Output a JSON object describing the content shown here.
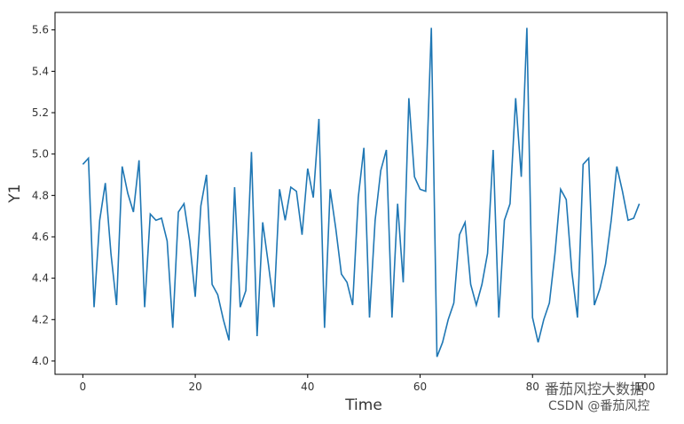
{
  "chart_data": {
    "type": "line",
    "xlabel": "Time",
    "ylabel": "Y1",
    "x": [
      0,
      1,
      2,
      3,
      4,
      5,
      6,
      7,
      8,
      9,
      10,
      11,
      12,
      13,
      14,
      15,
      16,
      17,
      18,
      19,
      20,
      21,
      22,
      23,
      24,
      25,
      26,
      27,
      28,
      29,
      30,
      31,
      32,
      33,
      34,
      35,
      36,
      37,
      38,
      39,
      40,
      41,
      42,
      43,
      44,
      45,
      46,
      47,
      48,
      49,
      50,
      51,
      52,
      53,
      54,
      55,
      56,
      57,
      58,
      59,
      60,
      61,
      62,
      63,
      64,
      65,
      66,
      67,
      68,
      69,
      70,
      71,
      72,
      73,
      74,
      75,
      76,
      77,
      78,
      79,
      80,
      81,
      82,
      83,
      84,
      85,
      86,
      87,
      88,
      89,
      90,
      91,
      92,
      93,
      94,
      95,
      96,
      97,
      98,
      99
    ],
    "series": [
      {
        "name": "Y1",
        "color": "#1f77b4",
        "values": [
          4.95,
          4.98,
          4.26,
          4.68,
          4.86,
          4.52,
          4.27,
          4.94,
          4.81,
          4.72,
          4.97,
          4.26,
          4.71,
          4.68,
          4.69,
          4.58,
          4.16,
          4.72,
          4.76,
          4.58,
          4.31,
          4.75,
          4.9,
          4.37,
          4.32,
          4.2,
          4.1,
          4.84,
          4.26,
          4.34,
          5.01,
          4.12,
          4.67,
          4.47,
          4.26,
          4.83,
          4.68,
          4.84,
          4.82,
          4.61,
          4.93,
          4.79,
          5.17,
          4.16,
          4.83,
          4.64,
          4.42,
          4.38,
          4.27,
          4.79,
          5.03,
          4.21,
          4.68,
          4.92,
          5.02,
          4.21,
          4.76,
          4.38,
          5.27,
          4.89,
          4.83,
          4.82,
          5.61,
          4.02,
          4.09,
          4.2,
          4.28,
          4.61,
          4.67,
          4.37,
          4.27,
          4.37,
          4.52,
          5.02,
          4.21,
          4.68,
          4.76,
          5.27,
          4.89,
          5.61,
          4.21,
          4.09,
          4.2,
          4.28,
          4.52,
          4.83,
          4.78,
          4.43,
          4.21,
          4.95,
          4.98,
          4.27,
          4.35,
          4.47,
          4.68,
          4.94,
          4.82,
          4.68,
          4.69,
          4.76
        ]
      }
    ],
    "xlim": [
      -4.95,
      103.95
    ],
    "xticks": [
      0,
      20,
      40,
      60,
      80,
      100
    ],
    "ylim": [
      3.9355,
      5.6845
    ],
    "yticks": [
      {
        "value": 4,
        "label": "4.0"
      },
      4.2,
      4.4,
      4.6,
      4.8,
      {
        "value": 5,
        "label": "5.0"
      },
      5.2,
      5.4,
      5.6
    ],
    "watermark": [
      "番茄风控大数据",
      "CSDN @番茄风控"
    ]
  }
}
